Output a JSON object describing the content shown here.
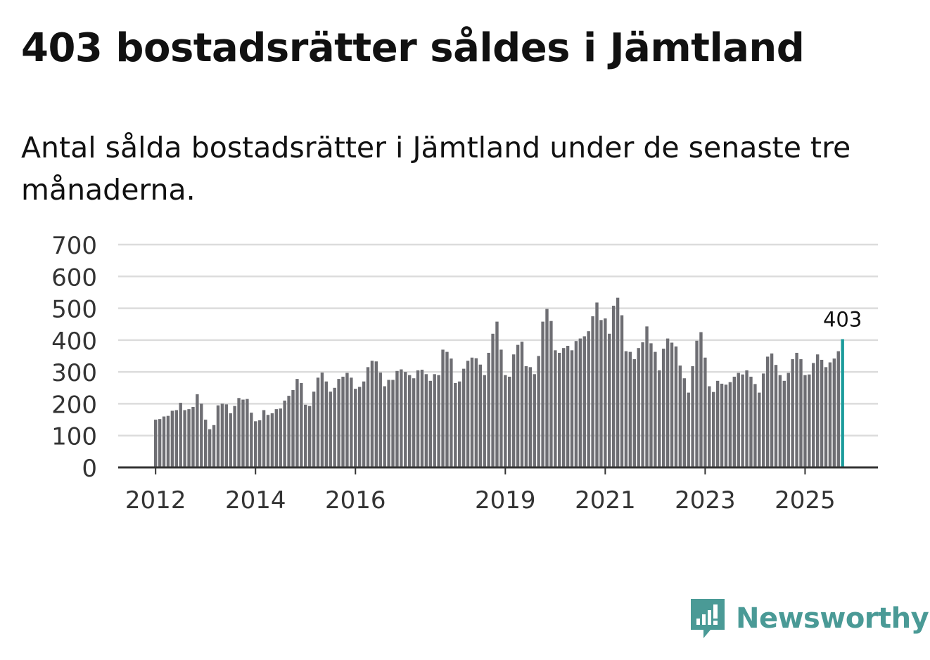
{
  "title": "403 bostadsrätter såldes i Jämtland",
  "subtitle": "Antal sålda bostadsrätter i Jämtland under de senaste tre månaderna.",
  "brand": {
    "name": "Newsworthy",
    "icon": "newsworthy-logo-icon",
    "color": "#4a9a96"
  },
  "chart_data": {
    "type": "bar",
    "title": "403 bostadsrätter såldes i Jämtland",
    "xlabel": "",
    "ylabel": "",
    "ylim": [
      0,
      700
    ],
    "yticks": [
      0,
      100,
      200,
      300,
      400,
      500,
      600,
      700
    ],
    "xtick_labels": [
      "2012",
      "2014",
      "2016",
      "2019",
      "2021",
      "2023",
      "2025"
    ],
    "first_month": "2012-01",
    "grid": true,
    "bar_color": "#6e6e73",
    "highlight_color": "#1a9b9b",
    "highlight_label": "403",
    "values": [
      150,
      152,
      160,
      162,
      178,
      180,
      203,
      180,
      183,
      190,
      230,
      200,
      150,
      120,
      133,
      195,
      200,
      198,
      170,
      193,
      218,
      213,
      215,
      172,
      145,
      148,
      180,
      165,
      170,
      183,
      185,
      210,
      225,
      243,
      278,
      265,
      197,
      193,
      238,
      282,
      298,
      270,
      238,
      250,
      278,
      285,
      297,
      282,
      247,
      253,
      270,
      315,
      335,
      333,
      298,
      255,
      275,
      275,
      303,
      308,
      300,
      290,
      280,
      305,
      307,
      293,
      272,
      293,
      290,
      370,
      363,
      342,
      265,
      270,
      310,
      335,
      345,
      343,
      323,
      290,
      360,
      420,
      458,
      370,
      290,
      285,
      355,
      385,
      395,
      318,
      315,
      293,
      350,
      458,
      498,
      460,
      368,
      360,
      375,
      382,
      368,
      397,
      405,
      412,
      428,
      475,
      518,
      463,
      468,
      420,
      508,
      533,
      478,
      365,
      363,
      340,
      375,
      393,
      443,
      390,
      363,
      305,
      373,
      405,
      392,
      380,
      320,
      280,
      235,
      318,
      398,
      425,
      345,
      255,
      237,
      272,
      263,
      260,
      268,
      285,
      297,
      292,
      305,
      285,
      262,
      235,
      295,
      348,
      358,
      322,
      290,
      272,
      297,
      340,
      360,
      340,
      290,
      292,
      328,
      355,
      338,
      315,
      330,
      342,
      365,
      403
    ]
  }
}
